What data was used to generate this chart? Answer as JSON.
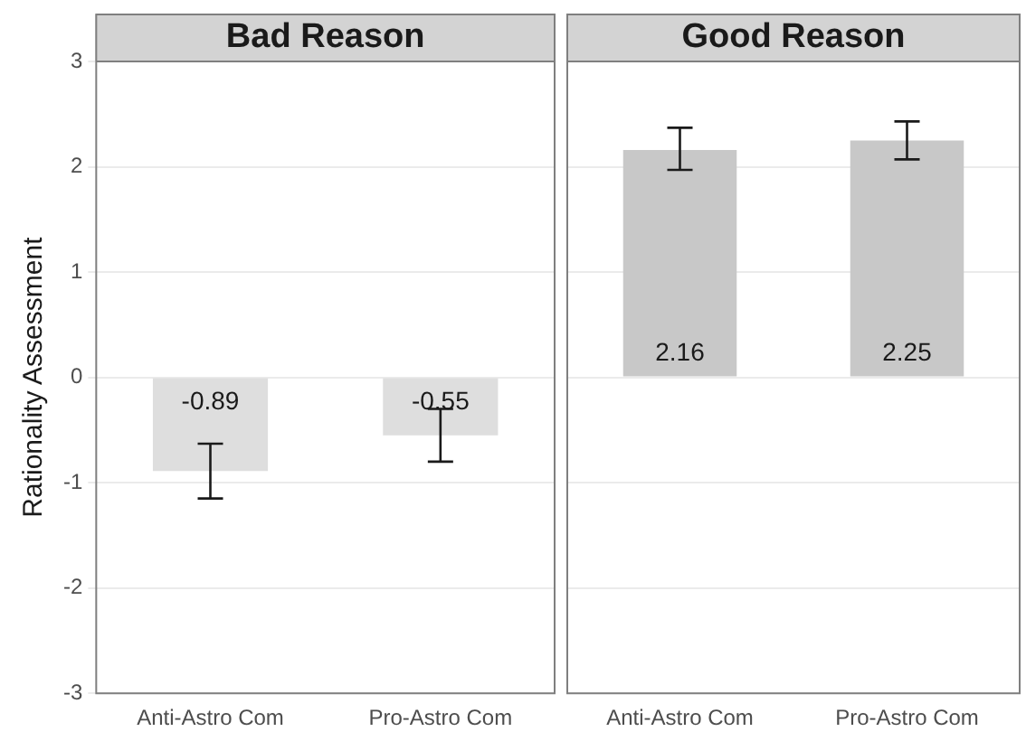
{
  "chart_data": [
    {
      "type": "bar",
      "title": "Bad Reason",
      "ylabel": "Rationality Assessment",
      "categories": [
        "Anti-Astro Com",
        "Pro-Astro Com"
      ],
      "values": [
        -0.89,
        -0.55
      ],
      "color": "#dedede",
      "errors": [
        [
          -1.15,
          -0.63
        ],
        [
          -0.8,
          -0.3
        ]
      ],
      "data_labels": true,
      "ylim": [
        -3,
        3
      ],
      "yticks": [
        -3,
        -2,
        -1,
        0,
        1,
        2,
        3
      ],
      "grid": "y"
    },
    {
      "type": "bar",
      "title": "Good Reason",
      "categories": [
        "Anti-Astro Com",
        "Pro-Astro Com"
      ],
      "values": [
        2.16,
        2.25
      ],
      "color": "#c8c8c8",
      "errors": [
        [
          1.97,
          2.37
        ],
        [
          2.07,
          2.43
        ]
      ],
      "data_labels": true,
      "ylim": [
        -3,
        3
      ],
      "yticks": [
        -3,
        -2,
        -1,
        0,
        1,
        2,
        3
      ],
      "grid": "y",
      "tick_labels": "x"
    }
  ]
}
